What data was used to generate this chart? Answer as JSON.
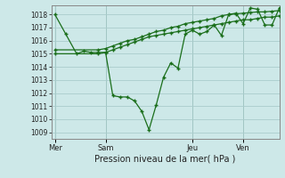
{
  "bg_color": "#cde8e8",
  "grid_color": "#aacccc",
  "line_color": "#1a6e1a",
  "title": "Pression niveau de la mer( hPa )",
  "ylim": [
    1008.5,
    1018.7
  ],
  "yticks": [
    1009,
    1010,
    1011,
    1012,
    1013,
    1014,
    1015,
    1016,
    1017,
    1018
  ],
  "day_labels": [
    "Mer",
    "Sam",
    "Jeu",
    "Ven"
  ],
  "day_positions": [
    0,
    7,
    19,
    26
  ],
  "xlim": [
    -0.5,
    31
  ],
  "line1_x": [
    0,
    1.5,
    3,
    4,
    5,
    6,
    7,
    8,
    9,
    10,
    11,
    12,
    13,
    14,
    15,
    16,
    17,
    18,
    19,
    20,
    21,
    22,
    23,
    24,
    25,
    26,
    27,
    28,
    29,
    30,
    31
  ],
  "line1_y": [
    1018.0,
    1016.5,
    1015.0,
    1015.2,
    1015.1,
    1015.1,
    1015.1,
    1011.8,
    1011.7,
    1011.7,
    1011.4,
    1010.6,
    1009.2,
    1011.1,
    1013.2,
    1014.3,
    1013.9,
    1016.5,
    1016.8,
    1016.5,
    1016.7,
    1017.2,
    1016.4,
    1018.0,
    1018.1,
    1017.3,
    1018.5,
    1018.4,
    1017.2,
    1017.2,
    1018.5
  ],
  "line2_x": [
    0,
    6,
    7,
    8,
    9,
    10,
    11,
    12,
    13,
    14,
    15,
    16,
    17,
    18,
    19,
    20,
    21,
    22,
    23,
    24,
    25,
    26,
    27,
    28,
    29,
    30,
    31
  ],
  "line2_y": [
    1015.0,
    1015.0,
    1015.1,
    1015.3,
    1015.5,
    1015.7,
    1015.9,
    1016.1,
    1016.3,
    1016.4,
    1016.5,
    1016.6,
    1016.7,
    1016.8,
    1016.9,
    1017.0,
    1017.1,
    1017.2,
    1017.3,
    1017.4,
    1017.5,
    1017.6,
    1017.6,
    1017.7,
    1017.8,
    1017.8,
    1017.9
  ],
  "line3_x": [
    0,
    6,
    7,
    8,
    9,
    10,
    11,
    12,
    13,
    14,
    15,
    16,
    17,
    18,
    19,
    20,
    21,
    22,
    23,
    24,
    25,
    26,
    27,
    28,
    29,
    30,
    31
  ],
  "line3_y": [
    1015.3,
    1015.3,
    1015.4,
    1015.6,
    1015.8,
    1016.0,
    1016.1,
    1016.3,
    1016.5,
    1016.7,
    1016.8,
    1017.0,
    1017.1,
    1017.3,
    1017.4,
    1017.5,
    1017.6,
    1017.7,
    1017.9,
    1018.0,
    1018.05,
    1018.1,
    1018.15,
    1018.2,
    1018.2,
    1018.25,
    1018.3
  ]
}
